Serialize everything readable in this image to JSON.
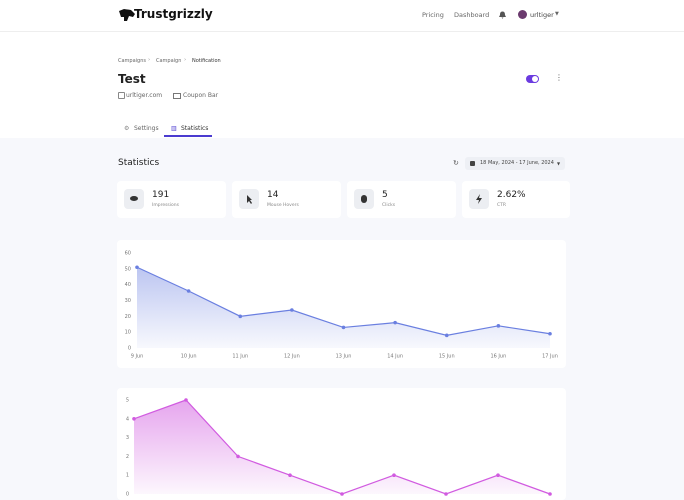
{
  "header": {
    "logo": "Trustgrizzly",
    "nav": [
      "Pricing",
      "Dashboard"
    ],
    "user": "urltiger"
  },
  "breadcrumb": [
    "Campaigns",
    "Campaign",
    "Notification"
  ],
  "title": "Test",
  "meta": [
    "urltiger.com",
    "Coupon Bar"
  ],
  "tabs": [
    "Settings",
    "Statistics"
  ],
  "section_title": "Statistics",
  "date_range": "18 May, 2024 - 17 June, 2024",
  "stats": [
    {
      "value": "191",
      "label": "Impressions"
    },
    {
      "value": "14",
      "label": "Mouse Hovers"
    },
    {
      "value": "5",
      "label": "Clicks"
    },
    {
      "value": "2.62%",
      "label": "CTR"
    }
  ],
  "chart_data": [
    {
      "type": "line",
      "fill": true,
      "categories": [
        "9 Jun",
        "10 Jun",
        "11 Jun",
        "12 Jun",
        "13 Jun",
        "14 Jun",
        "15 Jun",
        "16 Jun",
        "17 Jun"
      ],
      "series": [
        {
          "color": "#6a7fe0",
          "values": [
            51,
            36,
            20,
            24,
            13,
            16,
            8,
            14,
            9
          ]
        }
      ],
      "ylim": [
        0,
        60
      ],
      "yticks": [
        0,
        10,
        20,
        30,
        40,
        50,
        60
      ],
      "grid": false
    },
    {
      "type": "line",
      "fill": true,
      "series": [
        {
          "color": "#d15be0",
          "values": [
            4,
            5,
            2,
            1,
            0,
            1,
            0,
            1,
            0
          ]
        }
      ],
      "ylim": [
        0,
        5
      ],
      "yticks": [
        0,
        1,
        2,
        3,
        4,
        5
      ],
      "grid": false
    }
  ]
}
